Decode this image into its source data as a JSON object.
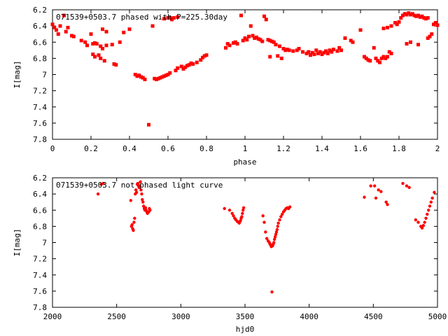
{
  "colors": {
    "points": "#ff0000",
    "axes": "#000000",
    "background": "#ffffff"
  },
  "chart_data": [
    {
      "type": "scatter",
      "title": "071539+0503.7 phased with P=225.30day",
      "xlabel": "phase",
      "ylabel": "I[mag]",
      "xlim": [
        0,
        2
      ],
      "ylim": [
        7.8,
        6.2
      ],
      "y_inverted": true,
      "x_ticks": [
        "0",
        "0.2",
        "0.4",
        "0.6",
        "0.8",
        "1",
        "1.2",
        "1.4",
        "1.6",
        "1.8",
        "2"
      ],
      "y_ticks": [
        "6.2",
        "6.4",
        "6.6",
        "6.8",
        "7",
        "7.2",
        "7.4",
        "7.6",
        "7.8"
      ],
      "grid": false,
      "legend": "none",
      "points": [
        [
          0.0,
          6.38
        ],
        [
          0.01,
          6.42
        ],
        [
          0.02,
          6.45
        ],
        [
          0.03,
          6.5
        ],
        [
          0.04,
          6.4
        ],
        [
          0.06,
          6.27
        ],
        [
          0.07,
          6.47
        ],
        [
          0.08,
          6.42
        ],
        [
          0.1,
          6.52
        ],
        [
          0.11,
          6.53
        ],
        [
          0.15,
          6.58
        ],
        [
          0.17,
          6.6
        ],
        [
          0.18,
          6.64
        ],
        [
          0.2,
          6.5
        ],
        [
          0.21,
          6.62
        ],
        [
          0.22,
          6.61
        ],
        [
          0.23,
          6.62
        ],
        [
          0.25,
          6.65
        ],
        [
          0.26,
          6.68
        ],
        [
          0.28,
          6.64
        ],
        [
          0.21,
          6.75
        ],
        [
          0.22,
          6.78
        ],
        [
          0.24,
          6.76
        ],
        [
          0.25,
          6.8
        ],
        [
          0.27,
          6.83
        ],
        [
          0.26,
          6.44
        ],
        [
          0.28,
          6.47
        ],
        [
          0.31,
          6.63
        ],
        [
          0.32,
          6.87
        ],
        [
          0.33,
          6.88
        ],
        [
          0.35,
          6.6
        ],
        [
          0.37,
          6.48
        ],
        [
          0.4,
          6.44
        ],
        [
          0.43,
          7.0
        ],
        [
          0.44,
          7.02
        ],
        [
          0.45,
          7.01
        ],
        [
          0.46,
          7.03
        ],
        [
          0.47,
          7.04
        ],
        [
          0.48,
          7.06
        ],
        [
          0.5,
          7.62
        ],
        [
          0.52,
          6.4
        ],
        [
          0.53,
          7.05
        ],
        [
          0.54,
          7.06
        ],
        [
          0.55,
          7.05
        ],
        [
          0.56,
          7.04
        ],
        [
          0.57,
          7.03
        ],
        [
          0.58,
          7.02
        ],
        [
          0.59,
          7.01
        ],
        [
          0.6,
          7.0
        ],
        [
          0.61,
          6.98
        ],
        [
          0.58,
          6.31
        ],
        [
          0.6,
          6.3
        ],
        [
          0.61,
          6.3
        ],
        [
          0.62,
          6.32
        ],
        [
          0.63,
          6.3
        ],
        [
          0.65,
          6.29
        ],
        [
          0.64,
          6.95
        ],
        [
          0.65,
          6.92
        ],
        [
          0.67,
          6.9
        ],
        [
          0.68,
          6.93
        ],
        [
          0.69,
          6.91
        ],
        [
          0.7,
          6.89
        ],
        [
          0.71,
          6.88
        ],
        [
          0.72,
          6.86
        ],
        [
          0.73,
          6.87
        ],
        [
          0.75,
          6.85
        ],
        [
          0.77,
          6.82
        ],
        [
          0.78,
          6.79
        ],
        [
          0.79,
          6.77
        ],
        [
          0.8,
          6.76
        ],
        [
          0.9,
          6.67
        ],
        [
          0.91,
          6.62
        ],
        [
          0.92,
          6.64
        ],
        [
          0.94,
          6.61
        ],
        [
          0.95,
          6.6
        ],
        [
          0.96,
          6.62
        ],
        [
          0.98,
          6.27
        ],
        [
          0.99,
          6.58
        ],
        [
          1.0,
          6.55
        ],
        [
          1.01,
          6.57
        ],
        [
          1.02,
          6.53
        ],
        [
          1.03,
          6.4
        ],
        [
          1.04,
          6.52
        ],
        [
          1.05,
          6.55
        ],
        [
          1.06,
          6.54
        ],
        [
          1.07,
          6.56
        ],
        [
          1.08,
          6.57
        ],
        [
          1.09,
          6.59
        ],
        [
          1.1,
          6.28
        ],
        [
          1.11,
          6.32
        ],
        [
          1.12,
          6.57
        ],
        [
          1.13,
          6.58
        ],
        [
          1.14,
          6.59
        ],
        [
          1.15,
          6.6
        ],
        [
          1.13,
          6.78
        ],
        [
          1.16,
          6.63
        ],
        [
          1.17,
          6.77
        ],
        [
          1.18,
          6.65
        ],
        [
          1.19,
          6.8
        ],
        [
          1.2,
          6.68
        ],
        [
          1.21,
          6.7
        ],
        [
          1.22,
          6.69
        ],
        [
          1.23,
          6.7
        ],
        [
          1.25,
          6.71
        ],
        [
          1.27,
          6.7
        ],
        [
          1.28,
          6.68
        ],
        [
          1.3,
          6.72
        ],
        [
          1.32,
          6.74
        ],
        [
          1.33,
          6.72
        ],
        [
          1.34,
          6.76
        ],
        [
          1.35,
          6.73
        ],
        [
          1.36,
          6.75
        ],
        [
          1.37,
          6.7
        ],
        [
          1.38,
          6.74
        ],
        [
          1.39,
          6.72
        ],
        [
          1.4,
          6.75
        ],
        [
          1.41,
          6.73
        ],
        [
          1.42,
          6.71
        ],
        [
          1.43,
          6.74
        ],
        [
          1.44,
          6.7
        ],
        [
          1.45,
          6.72
        ],
        [
          1.46,
          6.69
        ],
        [
          1.48,
          6.71
        ],
        [
          1.49,
          6.67
        ],
        [
          1.5,
          6.7
        ],
        [
          1.52,
          6.55
        ],
        [
          1.55,
          6.58
        ],
        [
          1.56,
          6.6
        ],
        [
          1.6,
          6.45
        ],
        [
          1.62,
          6.78
        ],
        [
          1.63,
          6.8
        ],
        [
          1.64,
          6.82
        ],
        [
          1.65,
          6.83
        ],
        [
          1.67,
          6.67
        ],
        [
          1.68,
          6.8
        ],
        [
          1.69,
          6.83
        ],
        [
          1.7,
          6.85
        ],
        [
          1.71,
          6.8
        ],
        [
          1.72,
          6.78
        ],
        [
          1.73,
          6.8
        ],
        [
          1.74,
          6.78
        ],
        [
          1.75,
          6.72
        ],
        [
          1.76,
          6.74
        ],
        [
          1.72,
          6.43
        ],
        [
          1.74,
          6.42
        ],
        [
          1.76,
          6.4
        ],
        [
          1.78,
          6.36
        ],
        [
          1.79,
          6.38
        ],
        [
          1.8,
          6.35
        ],
        [
          1.81,
          6.3
        ],
        [
          1.82,
          6.27
        ],
        [
          1.83,
          6.25
        ],
        [
          1.84,
          6.26
        ],
        [
          1.85,
          6.24
        ],
        [
          1.86,
          6.26
        ],
        [
          1.87,
          6.25
        ],
        [
          1.88,
          6.27
        ],
        [
          1.89,
          6.28
        ],
        [
          1.9,
          6.27
        ],
        [
          1.91,
          6.29
        ],
        [
          1.92,
          6.28
        ],
        [
          1.93,
          6.3
        ],
        [
          1.94,
          6.31
        ],
        [
          1.95,
          6.3
        ],
        [
          1.84,
          6.62
        ],
        [
          1.86,
          6.6
        ],
        [
          1.9,
          6.63
        ],
        [
          1.95,
          6.55
        ],
        [
          1.96,
          6.53
        ],
        [
          1.97,
          6.5
        ],
        [
          1.98,
          6.38
        ],
        [
          1.99,
          6.36
        ],
        [
          2.0,
          6.39
        ]
      ]
    },
    {
      "type": "scatter",
      "title": "071539+0503.7 not phased light curve",
      "xlabel": "hjd0",
      "ylabel": "I[mag]",
      "xlim": [
        2000,
        5000
      ],
      "ylim": [
        7.8,
        6.2
      ],
      "y_inverted": true,
      "x_ticks": [
        "2000",
        "2500",
        "3000",
        "3500",
        "4000",
        "4500",
        "5000"
      ],
      "y_ticks": [
        "6.2",
        "6.4",
        "6.6",
        "6.8",
        "7",
        "7.2",
        "7.4",
        "7.6",
        "7.8"
      ],
      "grid": false,
      "legend": "none",
      "points": [
        [
          2355,
          6.4
        ],
        [
          2380,
          6.28
        ],
        [
          2395,
          6.27
        ],
        [
          2610,
          6.48
        ],
        [
          2615,
          6.8
        ],
        [
          2620,
          6.78
        ],
        [
          2625,
          6.83
        ],
        [
          2630,
          6.85
        ],
        [
          2635,
          6.75
        ],
        [
          2640,
          6.7
        ],
        [
          2645,
          6.4
        ],
        [
          2650,
          6.35
        ],
        [
          2655,
          6.38
        ],
        [
          2660,
          6.28
        ],
        [
          2665,
          6.27
        ],
        [
          2670,
          6.3
        ],
        [
          2675,
          6.32
        ],
        [
          2680,
          6.3
        ],
        [
          2685,
          6.25
        ],
        [
          2690,
          6.35
        ],
        [
          2695,
          6.4
        ],
        [
          2700,
          6.47
        ],
        [
          2705,
          6.5
        ],
        [
          2710,
          6.55
        ],
        [
          2715,
          6.58
        ],
        [
          2720,
          6.6
        ],
        [
          2725,
          6.57
        ],
        [
          2730,
          6.6
        ],
        [
          2735,
          6.62
        ],
        [
          2740,
          6.64
        ],
        [
          2750,
          6.62
        ],
        [
          2755,
          6.58
        ],
        [
          2760,
          6.6
        ],
        [
          3340,
          6.58
        ],
        [
          3380,
          6.6
        ],
        [
          3400,
          6.64
        ],
        [
          3410,
          6.67
        ],
        [
          3420,
          6.7
        ],
        [
          3430,
          6.72
        ],
        [
          3440,
          6.74
        ],
        [
          3450,
          6.75
        ],
        [
          3455,
          6.76
        ],
        [
          3460,
          6.74
        ],
        [
          3465,
          6.73
        ],
        [
          3470,
          6.7
        ],
        [
          3475,
          6.68
        ],
        [
          3480,
          6.64
        ],
        [
          3485,
          6.6
        ],
        [
          3490,
          6.57
        ],
        [
          3640,
          6.67
        ],
        [
          3650,
          6.75
        ],
        [
          3660,
          6.87
        ],
        [
          3670,
          6.95
        ],
        [
          3680,
          6.98
        ],
        [
          3690,
          7.0
        ],
        [
          3695,
          7.02
        ],
        [
          3700,
          7.03
        ],
        [
          3705,
          7.05
        ],
        [
          3710,
          7.61
        ],
        [
          3715,
          7.04
        ],
        [
          3720,
          7.02
        ],
        [
          3725,
          7.0
        ],
        [
          3730,
          6.96
        ],
        [
          3735,
          6.93
        ],
        [
          3740,
          6.9
        ],
        [
          3745,
          6.87
        ],
        [
          3750,
          6.84
        ],
        [
          3755,
          6.8
        ],
        [
          3760,
          6.76
        ],
        [
          3770,
          6.72
        ],
        [
          3780,
          6.68
        ],
        [
          3790,
          6.65
        ],
        [
          3800,
          6.62
        ],
        [
          3810,
          6.6
        ],
        [
          3820,
          6.58
        ],
        [
          3830,
          6.57
        ],
        [
          3840,
          6.58
        ],
        [
          3850,
          6.56
        ],
        [
          4430,
          6.44
        ],
        [
          4480,
          6.3
        ],
        [
          4510,
          6.3
        ],
        [
          4520,
          6.45
        ],
        [
          4540,
          6.35
        ],
        [
          4560,
          6.37
        ],
        [
          4600,
          6.5
        ],
        [
          4610,
          6.53
        ],
        [
          4730,
          6.27
        ],
        [
          4760,
          6.3
        ],
        [
          4780,
          6.32
        ],
        [
          4830,
          6.72
        ],
        [
          4850,
          6.75
        ],
        [
          4870,
          6.8
        ],
        [
          4880,
          6.82
        ],
        [
          4890,
          6.79
        ],
        [
          4900,
          6.75
        ],
        [
          4910,
          6.7
        ],
        [
          4920,
          6.65
        ],
        [
          4930,
          6.6
        ],
        [
          4940,
          6.55
        ],
        [
          4950,
          6.5
        ],
        [
          4960,
          6.45
        ],
        [
          4975,
          6.38
        ]
      ]
    }
  ]
}
